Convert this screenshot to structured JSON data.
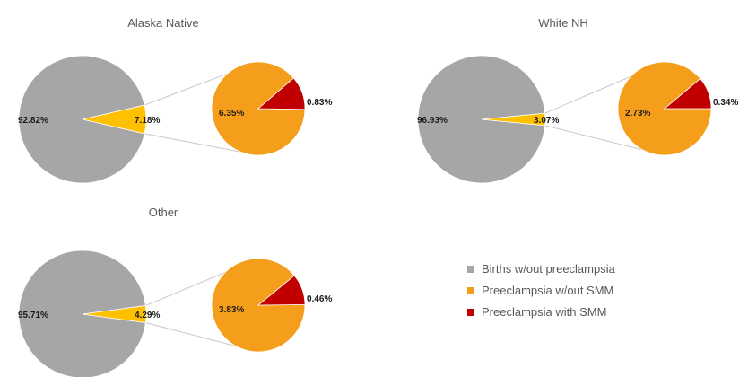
{
  "chart_data": [
    {
      "type": "pie",
      "subtype": "pie-of-pie",
      "title": "Alaska Native",
      "main": [
        {
          "name": "Births w/out preeclampsia",
          "value": 92.82,
          "label": "92.82%"
        },
        {
          "name": "Preeclampsia",
          "value": 7.18,
          "label": "7.18%"
        }
      ],
      "secondary": [
        {
          "name": "Preeclampsia w/out SMM",
          "value": 6.35,
          "label": "6.35%"
        },
        {
          "name": "Preeclampsia with SMM",
          "value": 0.83,
          "label": "0.83%"
        }
      ]
    },
    {
      "type": "pie",
      "subtype": "pie-of-pie",
      "title": "White NH",
      "main": [
        {
          "name": "Births w/out preeclampsia",
          "value": 96.93,
          "label": "96.93%"
        },
        {
          "name": "Preeclampsia",
          "value": 3.07,
          "label": "3.07%"
        }
      ],
      "secondary": [
        {
          "name": "Preeclampsia w/out SMM",
          "value": 2.73,
          "label": "2.73%"
        },
        {
          "name": "Preeclampsia with SMM",
          "value": 0.34,
          "label": "0.34%"
        }
      ]
    },
    {
      "type": "pie",
      "subtype": "pie-of-pie",
      "title": "Other",
      "main": [
        {
          "name": "Births w/out preeclampsia",
          "value": 95.71,
          "label": "95.71%"
        },
        {
          "name": "Preeclampsia",
          "value": 4.29,
          "label": "4.29%"
        }
      ],
      "secondary": [
        {
          "name": "Preeclampsia w/out SMM",
          "value": 3.83,
          "label": "3.83%"
        },
        {
          "name": "Preeclampsia with SMM",
          "value": 0.46,
          "label": "0.46%"
        }
      ]
    }
  ],
  "legend": {
    "placement": "bottom-right",
    "items": [
      {
        "label": "Births w/out preeclampsia",
        "color": "#a6a6a6"
      },
      {
        "label": "Preeclampsia w/out SMM",
        "color": "#f59e1b"
      },
      {
        "label": "Preeclampsia with SMM",
        "color": "#c00000"
      }
    ]
  },
  "colors": {
    "main_large": "#a6a6a6",
    "main_small": "#ffc000",
    "secondary_large": "#f59e1b",
    "secondary_small": "#c00000",
    "connector": "#c8c8c8",
    "slice_border": "#ffffff"
  }
}
